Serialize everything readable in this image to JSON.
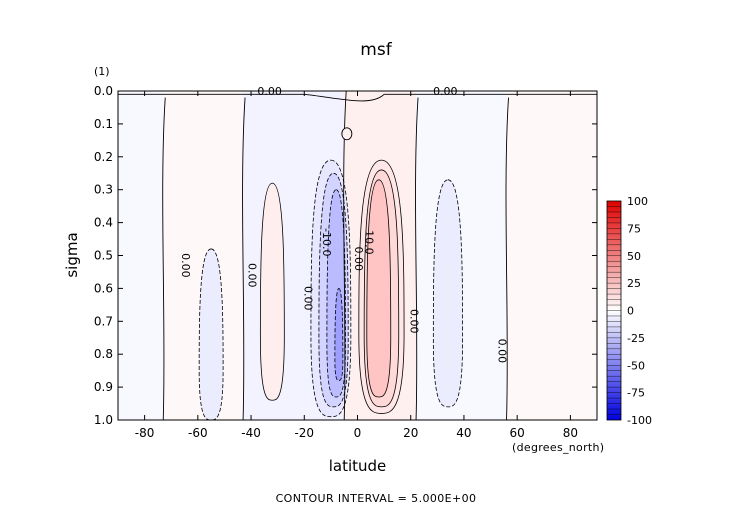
{
  "chart_data": {
    "type": "heatmap",
    "title": "msf",
    "subtitle": "(1)",
    "xlabel": "latitude",
    "x_units_label": "(degrees_north)",
    "ylabel": "sigma",
    "xlim": [
      -90,
      90
    ],
    "ylim": [
      1.0,
      0.0
    ],
    "x_ticks": [
      -80,
      -60,
      -40,
      -20,
      0,
      20,
      40,
      60,
      80
    ],
    "y_ticks": [
      0.0,
      0.1,
      0.2,
      0.3,
      0.4,
      0.5,
      0.6,
      0.7,
      0.8,
      0.9,
      1.0
    ],
    "y_tick_labels": [
      "0.0",
      "0.1",
      "0.2",
      "0.3",
      "0.4",
      "0.5",
      "0.6",
      "0.7",
      "0.8",
      "0.9",
      "1.0"
    ],
    "colorbar": {
      "min": -100,
      "max": 100,
      "tick_values": [
        100,
        75,
        50,
        25,
        0,
        -25,
        -50,
        -75,
        -100
      ],
      "tick_labels": [
        "100",
        "75",
        "50",
        "25",
        "0",
        "-25",
        "-50",
        "-75",
        "-100"
      ],
      "low_color": "#0000e0",
      "mid_color": "#ffffff",
      "high_color": "#e00000"
    },
    "contour_interval": 5.0,
    "footer": "CONTOUR INTERVAL = 5.000E+00",
    "contour_labels": [
      {
        "text": "0.00",
        "lat": -33,
        "sigma": 0.0
      },
      {
        "text": "0.00",
        "lat": 33,
        "sigma": 0.0
      },
      {
        "text": "0.00",
        "lat": -66,
        "sigma": 0.53
      },
      {
        "text": "0.00",
        "lat": -41,
        "sigma": 0.56
      },
      {
        "text": "0.00",
        "lat": -20,
        "sigma": 0.63
      },
      {
        "text": "-10.0",
        "lat": -13,
        "sigma": 0.46
      },
      {
        "text": "0.00",
        "lat": -1,
        "sigma": 0.51
      },
      {
        "text": "10.0",
        "lat": 3,
        "sigma": 0.46
      },
      {
        "text": "0.00",
        "lat": 20,
        "sigma": 0.7
      },
      {
        "text": "0.00",
        "lat": 53,
        "sigma": 0.79
      }
    ],
    "cells": [
      {
        "lat": [
          -90,
          -73
        ],
        "value": -3
      },
      {
        "lat": [
          -73,
          -43
        ],
        "value": 3
      },
      {
        "lat": [
          -43,
          -5
        ],
        "value": -5
      },
      {
        "lat": [
          -5,
          22
        ],
        "value": 6
      },
      {
        "lat": [
          22,
          56
        ],
        "value": -3
      },
      {
        "lat": [
          56,
          90
        ],
        "value": 3
      }
    ]
  }
}
